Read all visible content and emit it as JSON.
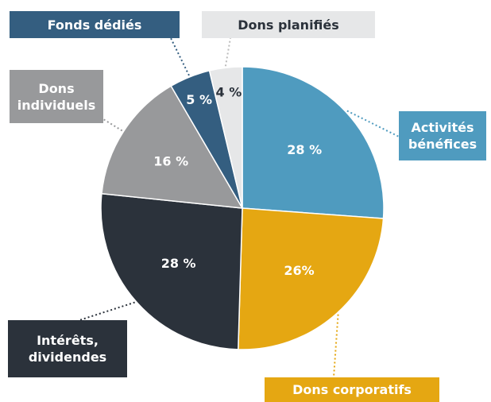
{
  "chart_data": {
    "type": "pie",
    "categories": [
      "Activités bénéfices",
      "Dons corporatifs",
      "Intérêts, dividendes",
      "Dons individuels",
      "Fonds dédiés",
      "Dons planifiés"
    ],
    "values": [
      28,
      26,
      28,
      16,
      5,
      4
    ],
    "value_labels": [
      "28 %",
      "26%",
      "28 %",
      "16 %",
      "5 %",
      "4 %"
    ],
    "colors": [
      "#4f9bbf",
      "#e5a712",
      "#2b323b",
      "#98999b",
      "#345e80",
      "#e6e7e8"
    ]
  }
}
